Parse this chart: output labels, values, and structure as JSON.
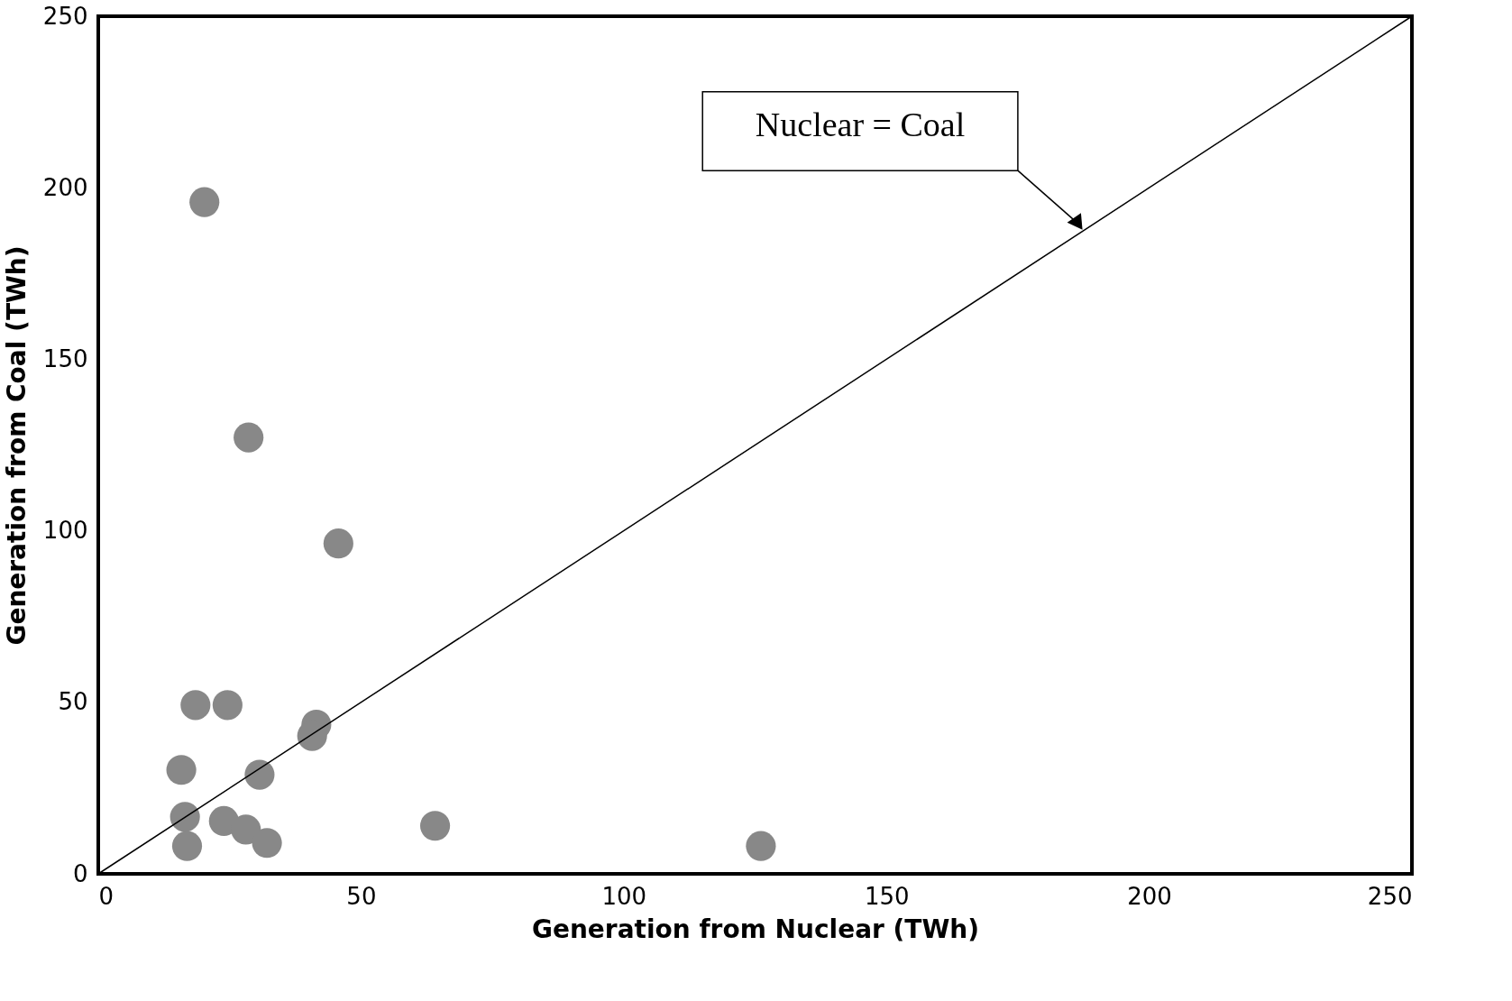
{
  "chart_data": {
    "type": "scatter",
    "xlabel": "Generation from Nuclear (TWh)",
    "ylabel": "Generation from Coal (TWh)",
    "xlim": [
      0,
      250
    ],
    "ylim": [
      0,
      250
    ],
    "xticks": [
      0,
      50,
      100,
      150,
      200,
      250
    ],
    "yticks": [
      0,
      50,
      100,
      150,
      200,
      250
    ],
    "grid": false,
    "marker": "circle",
    "series": [
      {
        "color": "#888888",
        "x": [
          20.2,
          28.6,
          45.7,
          18.5,
          24.6,
          41.5,
          40.7,
          15.8,
          30.7,
          16.5,
          23.9,
          28.1,
          16.9,
          32.1,
          64.1,
          126.1
        ],
        "values": [
          195.8,
          127.2,
          96.3,
          49.2,
          49.2,
          43.5,
          40.2,
          30.3,
          28.9,
          16.6,
          15.4,
          12.9,
          8.1,
          9.0,
          14.0,
          8.1
        ]
      },
      {
        "type": "line",
        "color": "#000000",
        "line_style": "solid",
        "marker": "none",
        "x": [
          0,
          250
        ],
        "values": [
          0,
          250
        ]
      }
    ],
    "annotations": [
      "Nuclear = Coal"
    ]
  }
}
